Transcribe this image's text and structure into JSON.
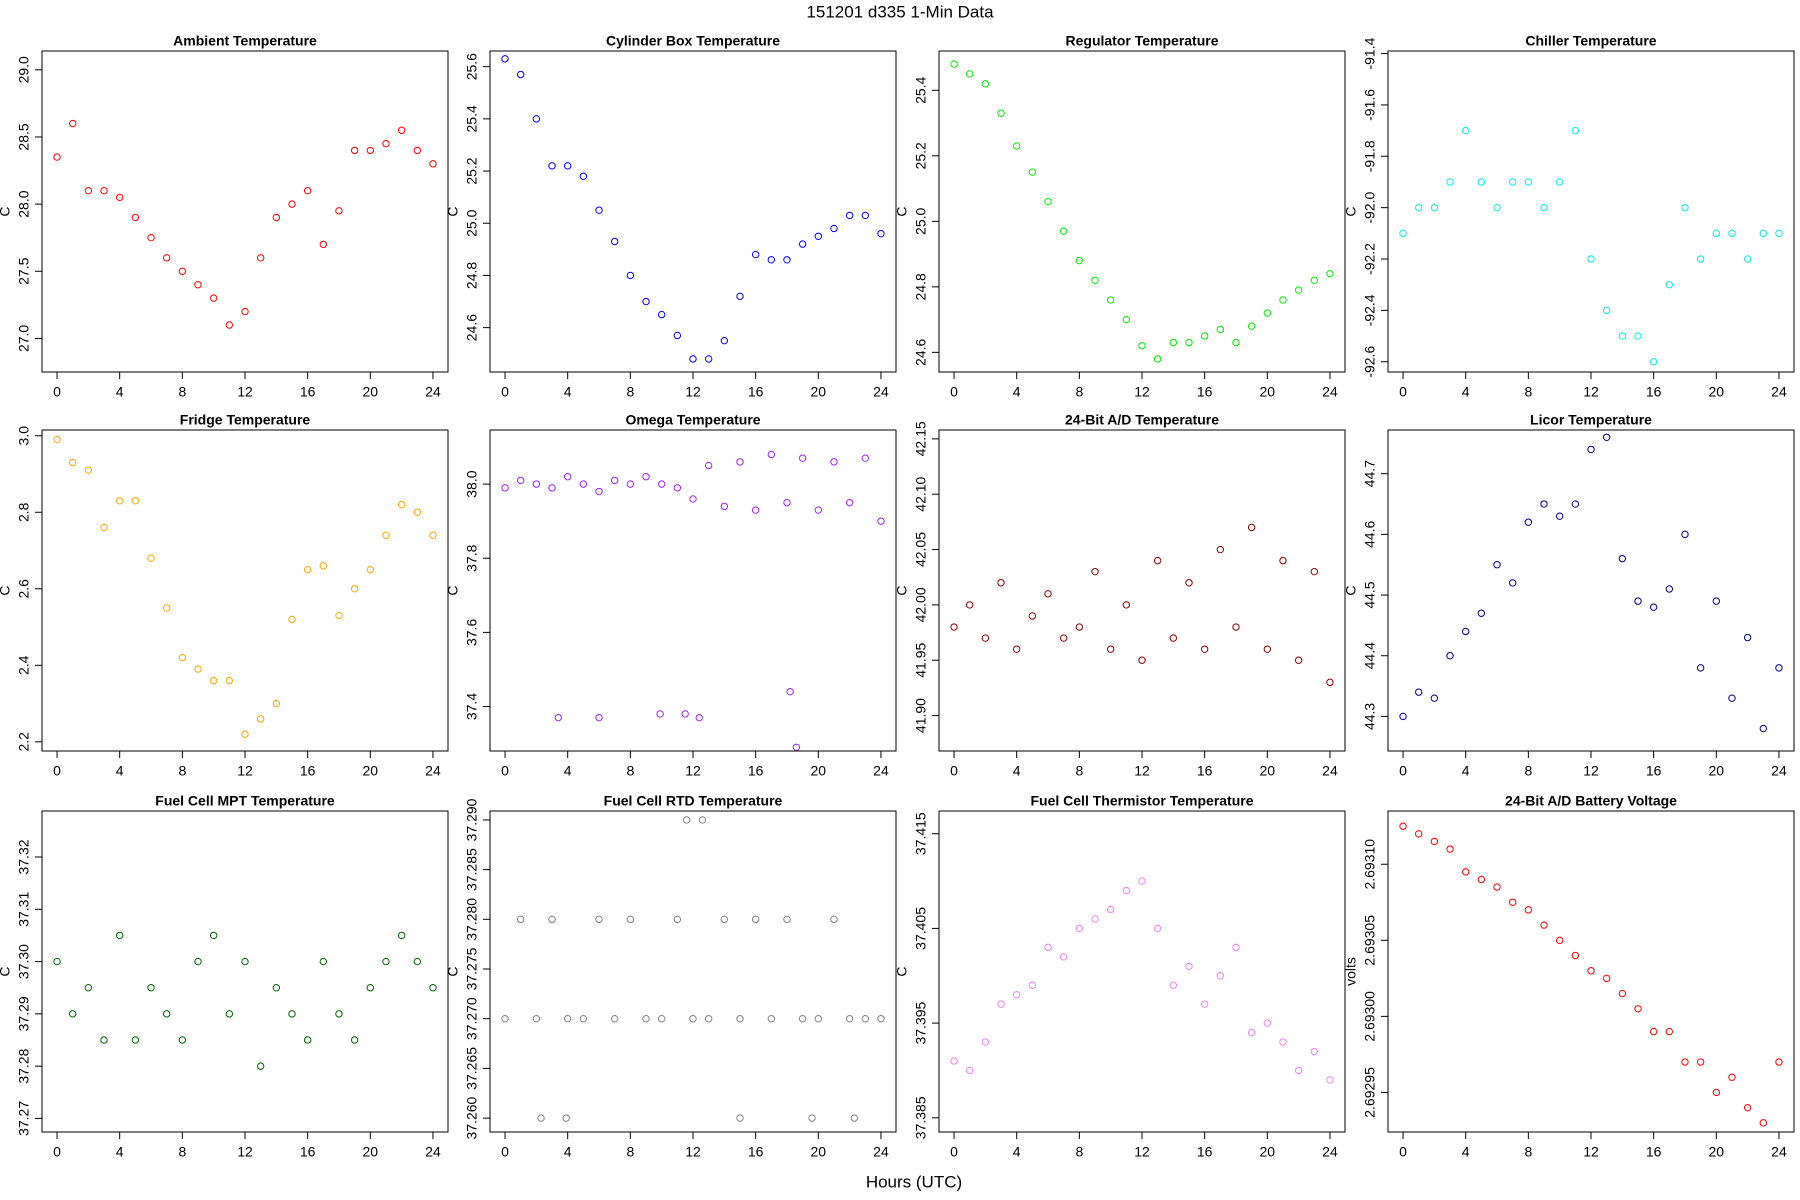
{
  "title": "151201   d335   1-Min Data",
  "xlabel": "Hours (UTC)",
  "chart_data": [
    {
      "type": "scatter",
      "title": "Ambient Temperature",
      "ylabel": "C",
      "color": "#ff0000",
      "x": [
        0,
        1,
        2,
        3,
        4,
        5,
        6,
        7,
        8,
        9,
        10,
        11,
        12,
        13,
        14,
        15,
        16,
        17,
        18,
        19,
        20,
        21,
        22,
        23,
        24
      ],
      "values": [
        28.35,
        28.6,
        28.1,
        28.1,
        28.05,
        27.9,
        27.75,
        27.6,
        27.5,
        27.4,
        27.3,
        27.1,
        27.2,
        27.6,
        27.9,
        28.0,
        28.1,
        27.7,
        27.95,
        28.4,
        28.4,
        28.45,
        28.55,
        28.4,
        28.3
      ],
      "xlim": [
        -0.96,
        24.96
      ],
      "xticks": [
        0,
        4,
        8,
        12,
        16,
        20,
        24
      ],
      "ylim": [
        26.75,
        29.14
      ],
      "yticks": [
        {
          "value": 27,
          "label": "27.0"
        },
        27.5,
        {
          "value": 28,
          "label": "28.0"
        },
        28.5,
        {
          "value": 29,
          "label": "29.0"
        }
      ]
    },
    {
      "type": "scatter",
      "title": "Cylinder Box Temperature",
      "ylabel": "C",
      "color": "#0000ff",
      "x": [
        0,
        1,
        2,
        3,
        4,
        5,
        6,
        7,
        8,
        9,
        10,
        11,
        12,
        13,
        14,
        15,
        16,
        17,
        18,
        19,
        20,
        21,
        22,
        23,
        24
      ],
      "values": [
        25.63,
        25.57,
        25.4,
        25.22,
        25.22,
        25.18,
        25.05,
        24.93,
        24.8,
        24.7,
        24.65,
        24.57,
        24.48,
        24.48,
        24.55,
        24.72,
        24.88,
        24.86,
        24.86,
        24.92,
        24.95,
        24.98,
        25.03,
        25.03,
        24.96
      ],
      "xlim": [
        -0.96,
        24.96
      ],
      "xticks": [
        0,
        4,
        8,
        12,
        16,
        20,
        24
      ],
      "ylim": [
        24.43,
        25.66
      ],
      "yticks": [
        24.6,
        24.8,
        {
          "value": 25,
          "label": "25.0"
        },
        25.2,
        25.4,
        25.6
      ]
    },
    {
      "type": "scatter",
      "title": "Regulator Temperature",
      "ylabel": "C",
      "color": "#00ee00",
      "x": [
        0,
        1,
        2,
        3,
        4,
        5,
        6,
        7,
        8,
        9,
        10,
        11,
        12,
        13,
        14,
        15,
        16,
        17,
        18,
        19,
        20,
        21,
        22,
        23,
        24
      ],
      "values": [
        25.48,
        25.45,
        25.42,
        25.33,
        25.23,
        25.15,
        25.06,
        24.97,
        24.88,
        24.82,
        24.76,
        24.7,
        24.62,
        24.58,
        24.63,
        24.63,
        24.65,
        24.67,
        24.63,
        24.68,
        24.72,
        24.76,
        24.79,
        24.82,
        24.84
      ],
      "xlim": [
        -0.96,
        24.96
      ],
      "xticks": [
        0,
        4,
        8,
        12,
        16,
        20,
        24
      ],
      "ylim": [
        24.54,
        25.52
      ],
      "yticks": [
        24.6,
        24.8,
        {
          "value": 25,
          "label": "25.0"
        },
        25.2,
        25.4
      ]
    },
    {
      "type": "scatter",
      "title": "Chiller Temperature",
      "ylabel": "C",
      "color": "#00eeee",
      "x": [
        0,
        1,
        2,
        3,
        4,
        5,
        6,
        7,
        8,
        9,
        10,
        11,
        12,
        13,
        14,
        15,
        16,
        17,
        18,
        19,
        20,
        21,
        22,
        23,
        24
      ],
      "values": [
        -92.1,
        -92.0,
        -92.0,
        -91.9,
        -91.7,
        -91.9,
        -92.0,
        -91.9,
        -91.9,
        -92.0,
        -91.9,
        -91.7,
        -92.2,
        -92.4,
        -92.5,
        -92.5,
        -92.6,
        -92.3,
        -92.0,
        -92.2,
        -92.1,
        -92.1,
        -92.2,
        -92.1,
        -92.1
      ],
      "xlim": [
        -0.96,
        24.96
      ],
      "xticks": [
        0,
        4,
        8,
        12,
        16,
        20,
        24
      ],
      "ylim": [
        -92.64,
        -91.39
      ],
      "yticks": [
        -92.6,
        -92.4,
        -92.2,
        {
          "value": -92,
          "label": "-92.0"
        },
        -91.8,
        -91.6,
        -91.4
      ]
    },
    {
      "type": "scatter",
      "title": "Fridge Temperature",
      "ylabel": "C",
      "color": "#ffa500",
      "x": [
        0,
        1,
        2,
        3,
        4,
        5,
        6,
        7,
        8,
        9,
        10,
        11,
        12,
        13,
        14,
        15,
        16,
        17,
        18,
        19,
        20,
        21,
        22,
        23,
        24
      ],
      "values": [
        2.99,
        2.93,
        2.91,
        2.76,
        2.83,
        2.83,
        2.68,
        2.55,
        2.42,
        2.39,
        2.36,
        2.36,
        2.22,
        2.26,
        2.3,
        2.52,
        2.65,
        2.66,
        2.53,
        2.6,
        2.65,
        2.74,
        2.82,
        2.8,
        2.74
      ],
      "xlim": [
        -0.96,
        24.96
      ],
      "xticks": [
        0,
        4,
        8,
        12,
        16,
        20,
        24
      ],
      "ylim": [
        2.176,
        3.015
      ],
      "yticks": [
        2.2,
        2.4,
        2.6,
        2.8,
        {
          "value": 3,
          "label": "3.0"
        }
      ]
    },
    {
      "type": "scatter",
      "title": "Omega Temperature",
      "ylabel": "C",
      "color": "#a020f0",
      "x": [
        0,
        1,
        2,
        3,
        4,
        5,
        6,
        7,
        8,
        9,
        10,
        11,
        12,
        13,
        14,
        15,
        16,
        17,
        18,
        19,
        20,
        21,
        22,
        23,
        24,
        3.4,
        6.0,
        9.9,
        11.5,
        12.4,
        18.2,
        18.6
      ],
      "values": [
        37.99,
        38.01,
        38.0,
        37.99,
        38.02,
        38.0,
        37.98,
        38.01,
        38.0,
        38.02,
        38.0,
        37.99,
        37.96,
        38.05,
        37.94,
        38.06,
        37.93,
        38.08,
        37.95,
        38.07,
        37.93,
        38.06,
        37.95,
        38.07,
        37.9,
        37.37,
        37.37,
        37.38,
        37.38,
        37.37,
        37.44,
        37.29
      ],
      "xlim": [
        -0.96,
        24.96
      ],
      "xticks": [
        0,
        4,
        8,
        12,
        16,
        20,
        24
      ],
      "ylim": [
        37.28,
        38.146
      ],
      "yticks": [
        37.4,
        37.6,
        37.8,
        {
          "value": 38,
          "label": "38.0"
        }
      ]
    },
    {
      "type": "scatter",
      "title": "24-Bit A/D Temperature",
      "ylabel": "C",
      "color": "#8b0000",
      "x": [
        0,
        1,
        2,
        3,
        4,
        5,
        6,
        7,
        8,
        9,
        10,
        11,
        12,
        13,
        14,
        15,
        16,
        17,
        18,
        19,
        20,
        21,
        22,
        23,
        24
      ],
      "values": [
        41.98,
        42.0,
        41.97,
        42.02,
        41.96,
        41.99,
        42.01,
        41.97,
        41.98,
        42.03,
        41.96,
        42.0,
        41.95,
        42.04,
        41.97,
        42.02,
        41.96,
        42.05,
        41.98,
        42.07,
        41.96,
        42.04,
        41.95,
        42.03,
        41.93
      ],
      "xlim": [
        -0.96,
        24.96
      ],
      "xticks": [
        0,
        4,
        8,
        12,
        16,
        20,
        24
      ],
      "ylim": [
        41.868,
        42.158
      ],
      "yticks": [
        {
          "value": 41.9,
          "label": "41.90"
        },
        41.95,
        {
          "value": 42,
          "label": "42.00"
        },
        42.05,
        {
          "value": 42.1,
          "label": "42.10"
        },
        42.15
      ]
    },
    {
      "type": "scatter",
      "title": "Licor Temperature",
      "ylabel": "C",
      "color": "#000080",
      "x": [
        0,
        1,
        2,
        3,
        4,
        5,
        6,
        7,
        8,
        9,
        10,
        11,
        12,
        13,
        14,
        15,
        16,
        17,
        18,
        19,
        20,
        21,
        22,
        23,
        24
      ],
      "values": [
        44.3,
        44.34,
        44.33,
        44.4,
        44.44,
        44.47,
        44.55,
        44.52,
        44.62,
        44.65,
        44.63,
        44.65,
        44.74,
        44.76,
        44.56,
        44.49,
        44.48,
        44.51,
        44.6,
        44.38,
        44.49,
        44.33,
        44.43,
        44.28,
        44.38
      ],
      "xlim": [
        -0.96,
        24.96
      ],
      "xticks": [
        0,
        4,
        8,
        12,
        16,
        20,
        24
      ],
      "ylim": [
        44.243,
        44.772
      ],
      "yticks": [
        44.3,
        44.4,
        44.5,
        44.6,
        44.7
      ]
    },
    {
      "type": "scatter",
      "title": "Fuel Cell MPT Temperature",
      "ylabel": "C",
      "color": "#006400",
      "x": [
        0,
        1,
        2,
        3,
        4,
        5,
        6,
        7,
        8,
        9,
        10,
        11,
        12,
        13,
        14,
        15,
        16,
        17,
        18,
        19,
        20,
        21,
        22,
        23,
        24
      ],
      "values": [
        37.3,
        37.29,
        37.295,
        37.285,
        37.305,
        37.285,
        37.295,
        37.29,
        37.285,
        37.3,
        37.305,
        37.29,
        37.3,
        37.28,
        37.295,
        37.29,
        37.285,
        37.3,
        37.29,
        37.285,
        37.295,
        37.3,
        37.305,
        37.3,
        37.295
      ],
      "xlim": [
        -0.96,
        24.96
      ],
      "xticks": [
        0,
        4,
        8,
        12,
        16,
        20,
        24
      ],
      "ylim": [
        37.2674,
        37.3288
      ],
      "yticks": [
        37.27,
        37.28,
        37.29,
        {
          "value": 37.3,
          "label": "37.30"
        },
        37.31,
        37.32
      ]
    },
    {
      "type": "scatter",
      "title": "Fuel Cell RTD Temperature",
      "ylabel": "C",
      "color": "#808080",
      "x": [
        0,
        1,
        2,
        3,
        4,
        5,
        6,
        7,
        8,
        9,
        10,
        11,
        12,
        13,
        14,
        15,
        16,
        17,
        18,
        19,
        20,
        21,
        22,
        23,
        24,
        2.3,
        3.9,
        11.6,
        12.6,
        15.0,
        19.6,
        22.3
      ],
      "values": [
        37.27,
        37.28,
        37.27,
        37.28,
        37.27,
        37.27,
        37.28,
        37.27,
        37.28,
        37.27,
        37.27,
        37.28,
        37.27,
        37.27,
        37.28,
        37.27,
        37.28,
        37.27,
        37.28,
        37.27,
        37.27,
        37.28,
        37.27,
        37.27,
        37.27,
        37.26,
        37.26,
        37.29,
        37.29,
        37.26,
        37.26,
        37.26
      ],
      "xlim": [
        -0.96,
        24.96
      ],
      "xticks": [
        0,
        4,
        8,
        12,
        16,
        20,
        24
      ],
      "ylim": [
        37.2586,
        37.2909
      ],
      "yticks": [
        {
          "value": 37.26,
          "label": "37.260"
        },
        {
          "value": 37.265,
          "label": "37.265"
        },
        {
          "value": 37.27,
          "label": "37.270"
        },
        {
          "value": 37.275,
          "label": "37.275"
        },
        {
          "value": 37.28,
          "label": "37.280"
        },
        {
          "value": 37.285,
          "label": "37.285"
        },
        {
          "value": 37.29,
          "label": "37.290"
        }
      ]
    },
    {
      "type": "scatter",
      "title": "Fuel Cell Thermistor Temperature",
      "ylabel": "C",
      "color": "#ee82ee",
      "x": [
        0,
        1,
        2,
        3,
        4,
        5,
        6,
        7,
        8,
        9,
        10,
        11,
        12,
        13,
        14,
        15,
        16,
        17,
        18,
        19,
        20,
        21,
        22,
        23,
        24
      ],
      "values": [
        37.391,
        37.39,
        37.393,
        37.397,
        37.398,
        37.399,
        37.403,
        37.402,
        37.405,
        37.406,
        37.407,
        37.409,
        37.41,
        37.405,
        37.399,
        37.401,
        37.397,
        37.4,
        37.403,
        37.394,
        37.395,
        37.393,
        37.39,
        37.392,
        37.389
      ],
      "xlim": [
        -0.96,
        24.96
      ],
      "xticks": [
        0,
        4,
        8,
        12,
        16,
        20,
        24
      ],
      "ylim": [
        37.3835,
        37.4174
      ],
      "yticks": [
        37.385,
        37.395,
        37.405,
        37.415
      ]
    },
    {
      "type": "scatter",
      "title": "24-Bit A/D Battery Voltage",
      "ylabel": "volts",
      "color": "#ff0000",
      "x": [
        0,
        1,
        2,
        3,
        4,
        5,
        6,
        7,
        8,
        9,
        10,
        11,
        12,
        13,
        14,
        15,
        16,
        17,
        18,
        19,
        20,
        21,
        22,
        23,
        24
      ],
      "values": [
        2.693125,
        2.69312,
        2.693115,
        2.69311,
        2.693095,
        2.69309,
        2.693085,
        2.693075,
        2.69307,
        2.69306,
        2.69305,
        2.69304,
        2.69303,
        2.693025,
        2.693015,
        2.693005,
        2.69299,
        2.69299,
        2.69297,
        2.69297,
        2.69295,
        2.69296,
        2.69294,
        2.69293,
        2.69297
      ],
      "xlim": [
        -0.96,
        24.96
      ],
      "xticks": [
        0,
        4,
        8,
        12,
        16,
        20,
        24
      ],
      "ylim": [
        2.692924,
        2.693135
      ],
      "yticks": [
        2.69295,
        {
          "value": 2.693,
          "label": "2.69300"
        },
        2.69305,
        {
          "value": 2.6931,
          "label": "2.69310"
        }
      ]
    }
  ]
}
